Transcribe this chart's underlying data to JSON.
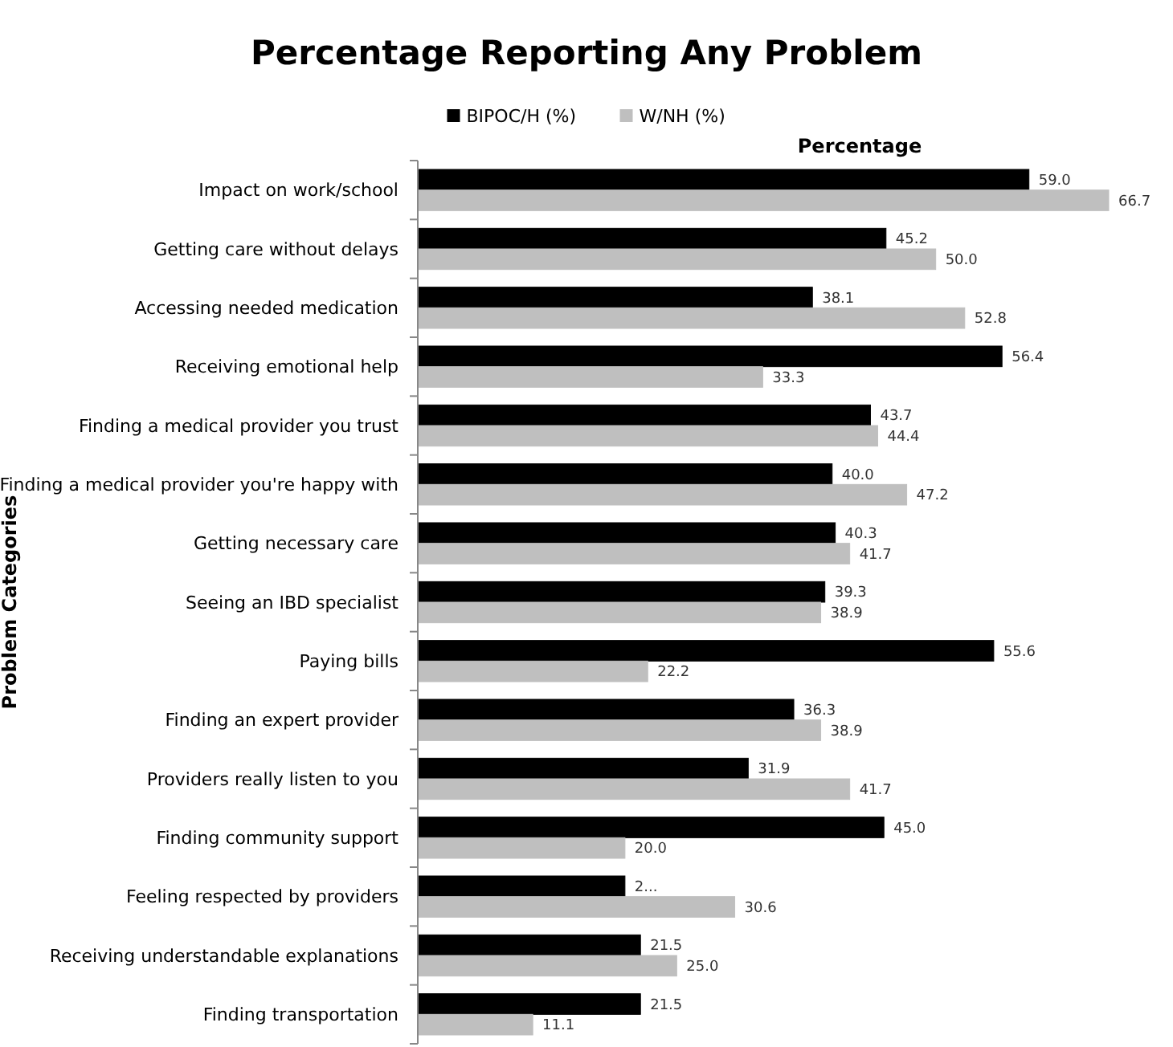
{
  "chart_data": {
    "type": "bar",
    "orientation": "horizontal",
    "title": "Percentage Reporting Any Problem",
    "xlabel": "Percentage",
    "ylabel": "Problem Categories",
    "legend": "top",
    "categories": [
      "Impact on work/school",
      "Getting care without delays",
      "Accessing needed medication",
      "Receiving emotional help",
      "Finding a medical provider you trust",
      "Finding a medical provider you're happy with",
      "Getting necessary care",
      "Seeing an IBD specialist",
      "Paying bills",
      "Finding an expert provider",
      "Providers really listen to you",
      "Finding community support",
      "Feeling respected by providers",
      "Receiving understandable explanations",
      "Finding transportation"
    ],
    "series": [
      {
        "name": "BIPOC/H (%)",
        "color": "#000000",
        "values": [
          59.0,
          45.2,
          38.1,
          56.4,
          43.7,
          40.0,
          40.3,
          39.3,
          55.6,
          36.3,
          31.9,
          45.0,
          20.0,
          21.5,
          21.5
        ],
        "value_labels": [
          "59.0",
          "45.2",
          "38.1",
          "56.4",
          "43.7",
          "40.0",
          "40.3",
          "39.3",
          "55.6",
          "36.3",
          "31.9",
          "45.0",
          "2...",
          "21.5",
          "21.5"
        ]
      },
      {
        "name": "W/NH (%)",
        "color": "#bfbfbf",
        "values": [
          66.7,
          50.0,
          52.8,
          33.3,
          44.4,
          47.2,
          41.7,
          38.9,
          22.2,
          38.9,
          41.7,
          20.0,
          30.6,
          25.0,
          11.1
        ],
        "value_labels": [
          "66.7",
          "50.0",
          "52.8",
          "33.3",
          "44.4",
          "47.2",
          "41.7",
          "38.9",
          "22.2",
          "38.9",
          "41.7",
          "20.0",
          "30.6",
          "25.0",
          "11.1"
        ]
      }
    ]
  }
}
